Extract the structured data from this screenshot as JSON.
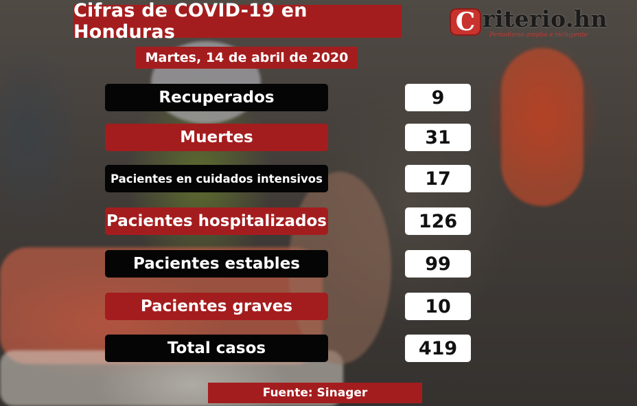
{
  "header": {
    "title": "Cifras de COVID-19 en Honduras",
    "date": "Martes, 14 de abril de 2020"
  },
  "logo": {
    "mark": "C",
    "word": "riterio.hn",
    "tagline": "Periodismo amplio e incluyente"
  },
  "stats": [
    {
      "label": "Recuperados",
      "value": "9",
      "style": "black"
    },
    {
      "label": "Muertes",
      "value": "31",
      "style": "red"
    },
    {
      "label": "Pacientes en cuidados intensivos",
      "value": "17",
      "style": "black"
    },
    {
      "label": "Pacientes hospitalizados",
      "value": "126",
      "style": "red"
    },
    {
      "label": "Pacientes estables",
      "value": "99",
      "style": "black"
    },
    {
      "label": "Pacientes graves",
      "value": "10",
      "style": "red"
    },
    {
      "label": "Total casos",
      "value": "419",
      "style": "black"
    }
  ],
  "footer": {
    "source": "Fuente: Sinager"
  },
  "colors": {
    "accent_red": "#a41d1e",
    "label_black": "#050505",
    "value_white": "#ffffff"
  }
}
